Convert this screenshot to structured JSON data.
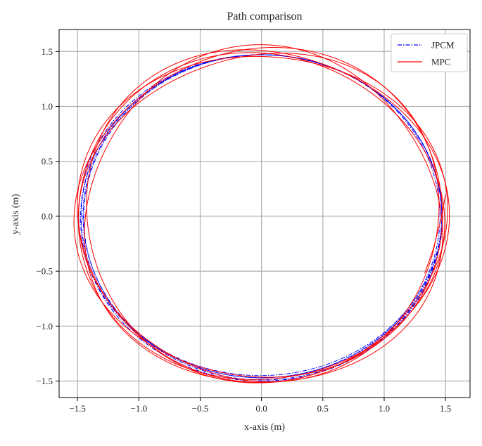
{
  "chart_data": {
    "type": "line",
    "title": "Path comparison",
    "xlabel": "x-axis (m)",
    "ylabel": "y-axis (m)",
    "xlim": [
      -1.65,
      1.7
    ],
    "ylim": [
      -1.65,
      1.7
    ],
    "xticks": [
      -1.5,
      -1.0,
      -0.5,
      0.0,
      0.5,
      1.0,
      1.5
    ],
    "yticks": [
      -1.5,
      -1.0,
      -0.5,
      0.0,
      0.5,
      1.0,
      1.5
    ],
    "xtick_labels": [
      "−1.5",
      "−1.0",
      "−0.5",
      "0.0",
      "0.5",
      "1.0",
      "1.5"
    ],
    "ytick_labels": [
      "−1.5",
      "−1.0",
      "−0.5",
      "0.0",
      "0.5",
      "1.0",
      "1.5"
    ],
    "grid": true,
    "legend_position": "top-right",
    "series": [
      {
        "name": "JPCM",
        "color": "#0000ff",
        "style": "dash-dot",
        "loops": [
          {
            "rx": 1.47,
            "ry": 1.47,
            "cx": 0.0,
            "cy": 0.0
          },
          {
            "rx": 1.46,
            "ry": 1.48,
            "cx": 0.01,
            "cy": -0.01
          },
          {
            "rx": 1.48,
            "ry": 1.46,
            "cx": -0.01,
            "cy": 0.01
          },
          {
            "rx": 1.455,
            "ry": 1.47,
            "cx": 0.0,
            "cy": 0.0
          },
          {
            "rx": 1.475,
            "ry": 1.485,
            "cx": 0.0,
            "cy": -0.015
          }
        ]
      },
      {
        "name": "MPC",
        "color": "#ff0000",
        "style": "solid",
        "loops": [
          {
            "rx": 1.49,
            "ry": 1.5,
            "cx": 0.0,
            "cy": 0.0,
            "wobble": 0.04,
            "phase": 0.3
          },
          {
            "rx": 1.47,
            "ry": 1.52,
            "cx": 0.02,
            "cy": 0.01,
            "wobble": 0.05,
            "phase": 1.2
          },
          {
            "rx": 1.5,
            "ry": 1.48,
            "cx": -0.02,
            "cy": -0.01,
            "wobble": 0.03,
            "phase": 2.1
          },
          {
            "rx": 1.48,
            "ry": 1.51,
            "cx": 0.01,
            "cy": -0.02,
            "wobble": 0.06,
            "phase": 3.0
          },
          {
            "rx": 1.51,
            "ry": 1.49,
            "cx": 0.0,
            "cy": 0.02,
            "wobble": 0.04,
            "phase": 4.2
          },
          {
            "rx": 1.46,
            "ry": 1.5,
            "cx": 0.01,
            "cy": 0.0,
            "wobble": 0.05,
            "phase": 5.1
          }
        ],
        "extra_segment": {
          "x": [
            1.33,
            1.4,
            1.47,
            1.5
          ],
          "y": [
            -0.52,
            -0.3,
            0.0,
            0.2
          ]
        }
      }
    ]
  }
}
